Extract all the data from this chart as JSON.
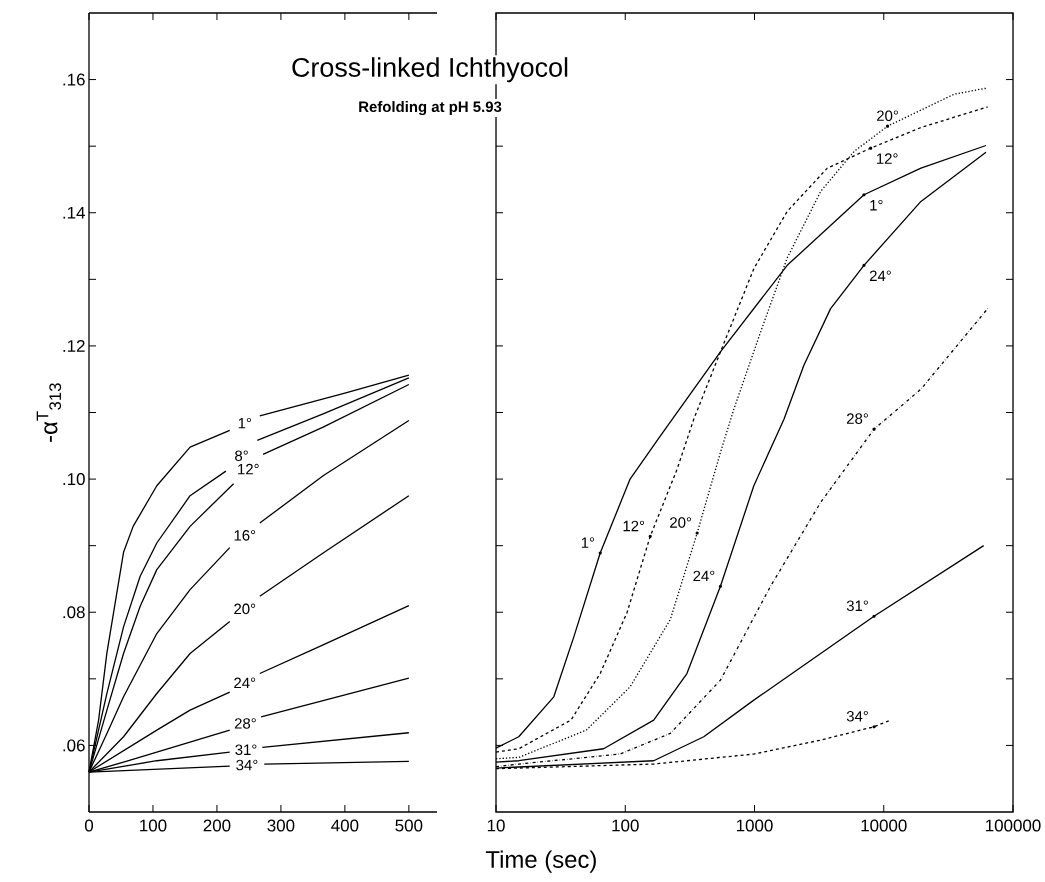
{
  "chart_data": [
    {
      "type": "line",
      "title": "Cross-linked Ichthyocol",
      "subtitle": "Refolding at pH 5.93",
      "xlabel": "Time (sec)",
      "ylabel": "-α$^{T}$$_{313}$",
      "xlim": [
        0,
        544
      ],
      "xticks": [
        0,
        100,
        200,
        300,
        400,
        500
      ],
      "ylim": [
        0.05,
        0.17
      ],
      "yticks": [
        {
          "value": 0.06,
          "label": ".06"
        },
        {
          "value": 0.07,
          "label": null
        },
        {
          "value": 0.08,
          "label": ".08"
        },
        {
          "value": 0.09,
          "label": null
        },
        {
          "value": 0.1,
          "label": ".10"
        },
        {
          "value": 0.11,
          "label": null
        },
        {
          "value": 0.12,
          "label": ".12"
        },
        {
          "value": 0.13,
          "label": null
        },
        {
          "value": 0.14,
          "label": ".14"
        },
        {
          "value": 0.15,
          "label": null
        },
        {
          "value": 0.16,
          "label": ".16"
        }
      ],
      "series": [
        {
          "name": "1°",
          "color": "#000000",
          "line_style": "solid",
          "x": [
            0,
            15,
            28,
            54,
            69,
            106,
            158,
            220,
            240,
            267,
            400,
            500
          ],
          "values": [
            0.056,
            0.0638,
            0.0739,
            0.089,
            0.0929,
            0.099,
            0.1048,
            0.1073,
            null,
            0.1095,
            0.1129,
            0.1156
          ]
        },
        {
          "name": "8°",
          "color": "#000000",
          "line_style": "solid",
          "x": [
            0,
            28,
            54,
            80,
            106,
            158,
            214,
            240,
            263,
            366,
            500
          ],
          "values": [
            0.056,
            0.0678,
            0.0778,
            0.0854,
            0.0904,
            0.0975,
            0.1012,
            null,
            0.1058,
            0.1098,
            0.1152
          ]
        },
        {
          "name": "12°",
          "color": "#000000",
          "line_style": "solid",
          "x": [
            0,
            28,
            54,
            80,
            106,
            158,
            226,
            240,
            272,
            366,
            500
          ],
          "values": [
            0.056,
            0.0653,
            0.0738,
            0.0809,
            0.0864,
            0.0929,
            0.0993,
            null,
            0.1037,
            0.1078,
            0.1142
          ]
        },
        {
          "name": "16°",
          "color": "#000000",
          "line_style": "solid",
          "x": [
            0,
            28,
            54,
            106,
            158,
            220,
            240,
            267,
            366,
            500
          ],
          "values": [
            0.056,
            0.0618,
            0.0673,
            0.0768,
            0.0834,
            0.0897,
            null,
            0.0934,
            0.1005,
            0.1088
          ]
        },
        {
          "name": "20°",
          "color": "#000000",
          "line_style": "solid",
          "x": [
            0,
            54,
            106,
            158,
            220,
            240,
            267,
            366,
            500
          ],
          "values": [
            0.056,
            0.0613,
            0.0678,
            0.0738,
            0.0786,
            null,
            0.0824,
            0.0889,
            0.0975
          ]
        },
        {
          "name": "24°",
          "color": "#000000",
          "line_style": "solid",
          "x": [
            0,
            106,
            158,
            220,
            240,
            267,
            366,
            500
          ],
          "values": [
            0.056,
            0.0623,
            0.0653,
            0.068,
            null,
            0.0708,
            0.0751,
            0.081
          ]
        },
        {
          "name": "28°",
          "color": "#000000",
          "line_style": "solid",
          "x": [
            0,
            54,
            106,
            220,
            240,
            269,
            500
          ],
          "values": [
            0.056,
            0.0575,
            0.059,
            0.0623,
            null,
            0.0643,
            0.0701
          ]
        },
        {
          "name": "31°",
          "color": "#000000",
          "line_style": "solid",
          "x": [
            0,
            106,
            220,
            240,
            271,
            500
          ],
          "values": [
            0.056,
            0.0577,
            0.059,
            null,
            0.0597,
            0.0619
          ]
        },
        {
          "name": "34°",
          "color": "#000000",
          "line_style": "solid",
          "x": [
            0,
            220,
            240,
            274,
            500
          ],
          "values": [
            0.056,
            0.0569,
            null,
            0.0572,
            0.0576
          ]
        }
      ]
    },
    {
      "type": "line",
      "log": "x",
      "tick_labels": "x",
      "xlim": [
        10,
        100000
      ],
      "xticks": [
        10,
        100,
        1000,
        10000,
        100000
      ],
      "ylim": [
        0.05,
        0.17
      ],
      "yticks": [
        0.06,
        0.07,
        0.08,
        0.09,
        0.1,
        0.11,
        0.12,
        0.13,
        0.14,
        0.15,
        0.16
      ],
      "series": [
        {
          "color": "#000000",
          "line_style": "solid",
          "x": [
            10,
            15,
            28,
            40,
            64,
            109,
            187,
            545,
            1790,
            7030,
            19400,
            61800
          ],
          "values": [
            0.0596,
            0.0613,
            0.0673,
            0.0763,
            0.0889,
            0.1,
            0.1065,
            0.1191,
            0.1321,
            0.1427,
            0.1467,
            0.1501
          ]
        },
        {
          "color": "#000000",
          "line_style": "dashed",
          "x": [
            10,
            15,
            38,
            64,
            103,
            156,
            252,
            339,
            545,
            988,
            1790,
            3660,
            7920,
            19400,
            63700
          ],
          "values": [
            0.059,
            0.0595,
            0.0638,
            0.0708,
            0.0799,
            0.0914,
            0.1015,
            0.109,
            0.1191,
            0.1316,
            0.1402,
            0.1467,
            0.1497,
            0.1528,
            0.1559
          ]
        },
        {
          "color": "#000000",
          "line_style": "dotted",
          "x": [
            10,
            15,
            50,
            109,
            223,
            360,
            545,
            692,
            1115,
            1790,
            3250,
            5890,
            10700,
            35000,
            61800
          ],
          "values": [
            0.058,
            0.0582,
            0.0623,
            0.0688,
            0.0789,
            0.0919,
            0.104,
            0.1105,
            0.1221,
            0.1332,
            0.1432,
            0.1492,
            0.153,
            0.1578,
            0.1587
          ]
        },
        {
          "color": "#000000",
          "line_style": "solid",
          "x": [
            10,
            15,
            68,
            166,
            300,
            545,
            988,
            1690,
            2410,
            3880,
            7030,
            19400,
            61800
          ],
          "values": [
            0.0575,
            0.0577,
            0.0595,
            0.0638,
            0.0708,
            0.0839,
            0.099,
            0.109,
            0.1171,
            0.1256,
            0.1321,
            0.1417,
            0.1491
          ]
        },
        {
          "color": "#000000",
          "line_style": "dashdot",
          "x": [
            10,
            15,
            91,
            223,
            545,
            1330,
            3250,
            8410,
            19400,
            63700
          ],
          "values": [
            0.0568,
            0.0572,
            0.0587,
            0.0618,
            0.0698,
            0.0839,
            0.0965,
            0.1075,
            0.1135,
            0.1256
          ]
        },
        {
          "color": "#000000",
          "line_style": "solid",
          "x": [
            10,
            166,
            405,
            988,
            3250,
            8410,
            59300
          ],
          "values": [
            0.0566,
            0.0577,
            0.0613,
            0.0668,
            0.0738,
            0.0794,
            0.09
          ]
        },
        {
          "color": "#000000",
          "line_style": "dashed",
          "x": [
            10,
            166,
            988,
            3250,
            8410,
            11300
          ],
          "values": [
            0.0565,
            0.0572,
            0.0587,
            0.0608,
            0.0628,
            0.0638
          ]
        }
      ],
      "annotations": [
        {
          "text": "20°",
          "x": 10700,
          "y": 0.153
        },
        {
          "text": "12°",
          "x": 7920,
          "y": 0.1497
        },
        {
          "text": "1°",
          "x": 7030,
          "y": 0.1427
        },
        {
          "text": "24°",
          "x": 7030,
          "y": 0.1321
        },
        {
          "text": "28°",
          "x": 8410,
          "y": 0.1075
        },
        {
          "text": "31°",
          "x": 8410,
          "y": 0.0794
        },
        {
          "text": "34°",
          "x": 8410,
          "y": 0.0628
        },
        {
          "text": "1°",
          "x": 64,
          "y": 0.0889
        },
        {
          "text": "12°",
          "x": 156,
          "y": 0.0914
        },
        {
          "text": "20°",
          "x": 360,
          "y": 0.0919
        },
        {
          "text": "24°",
          "x": 545,
          "y": 0.0839
        }
      ]
    }
  ]
}
